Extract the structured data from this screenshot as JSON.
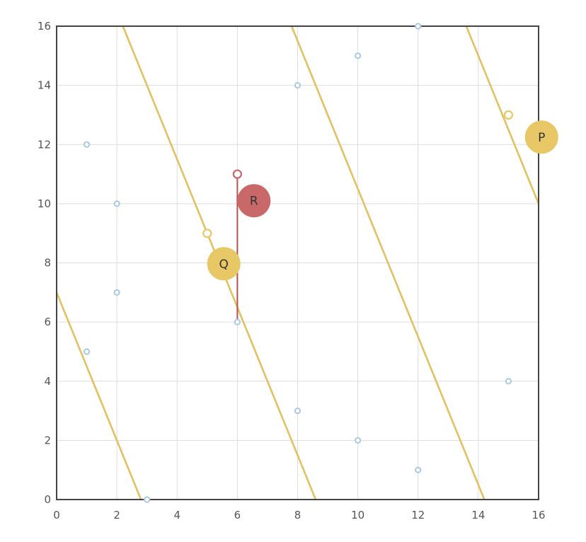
{
  "chart_data": {
    "type": "scatter",
    "xlim": [
      0,
      16
    ],
    "ylim": [
      0,
      16
    ],
    "xticks": [
      0,
      2,
      4,
      6,
      8,
      10,
      12,
      14,
      16
    ],
    "yticks": [
      0,
      2,
      4,
      6,
      8,
      10,
      12,
      14,
      16
    ],
    "grid": true,
    "colors": {
      "points": "#a9c9e6",
      "lines": "#e1c161",
      "badge_gold": "#e8c766",
      "badge_red": "#c96868",
      "segment": "#b85252",
      "axis": "#444444",
      "grid": "#dddddd"
    },
    "points": [
      {
        "x": 1,
        "y": 12
      },
      {
        "x": 2,
        "y": 10
      },
      {
        "x": 2,
        "y": 7
      },
      {
        "x": 1,
        "y": 5
      },
      {
        "x": 3,
        "y": 0
      },
      {
        "x": 6,
        "y": 6
      },
      {
        "x": 8,
        "y": 14
      },
      {
        "x": 8,
        "y": 3
      },
      {
        "x": 10,
        "y": 15
      },
      {
        "x": 10,
        "y": 2
      },
      {
        "x": 12,
        "y": 16
      },
      {
        "x": 12,
        "y": 1
      },
      {
        "x": 15,
        "y": 4
      }
    ],
    "parallel_lines": {
      "slope": -2.5,
      "intercepts": [
        7,
        21.5,
        35.5,
        50
      ]
    },
    "open_markers": [
      {
        "x": 5,
        "y": 9,
        "color": "gold"
      },
      {
        "x": 15,
        "y": 13,
        "color": "gold"
      },
      {
        "x": 6,
        "y": 11,
        "color": "red"
      }
    ],
    "segment": {
      "from": [
        6,
        6
      ],
      "to": [
        6,
        11
      ]
    },
    "badges": [
      {
        "label": "P",
        "x": 16.1,
        "y": 12.25,
        "color": "gold"
      },
      {
        "label": "Q",
        "x": 5.55,
        "y": 7.97,
        "color": "gold"
      },
      {
        "label": "R",
        "x": 6.55,
        "y": 10.1,
        "color": "red"
      }
    ]
  }
}
